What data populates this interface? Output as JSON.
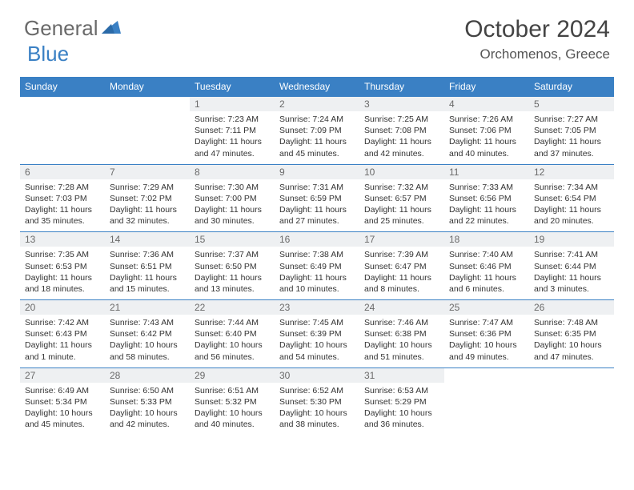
{
  "brand": {
    "part1": "General",
    "part2": "Blue"
  },
  "title": "October 2024",
  "location": "Orchomenos, Greece",
  "colors": {
    "header_bg": "#3a80c4",
    "daynum_bg": "#eef0f2",
    "divider": "#3a80c4",
    "text": "#333333",
    "logo_gray": "#6a6a6a",
    "logo_blue": "#3a80c4",
    "page_bg": "#ffffff"
  },
  "day_headers": [
    "Sunday",
    "Monday",
    "Tuesday",
    "Wednesday",
    "Thursday",
    "Friday",
    "Saturday"
  ],
  "weeks": [
    [
      null,
      null,
      {
        "n": "1",
        "sr": "7:23 AM",
        "ss": "7:11 PM",
        "dl": "11 hours and 47 minutes."
      },
      {
        "n": "2",
        "sr": "7:24 AM",
        "ss": "7:09 PM",
        "dl": "11 hours and 45 minutes."
      },
      {
        "n": "3",
        "sr": "7:25 AM",
        "ss": "7:08 PM",
        "dl": "11 hours and 42 minutes."
      },
      {
        "n": "4",
        "sr": "7:26 AM",
        "ss": "7:06 PM",
        "dl": "11 hours and 40 minutes."
      },
      {
        "n": "5",
        "sr": "7:27 AM",
        "ss": "7:05 PM",
        "dl": "11 hours and 37 minutes."
      }
    ],
    [
      {
        "n": "6",
        "sr": "7:28 AM",
        "ss": "7:03 PM",
        "dl": "11 hours and 35 minutes."
      },
      {
        "n": "7",
        "sr": "7:29 AM",
        "ss": "7:02 PM",
        "dl": "11 hours and 32 minutes."
      },
      {
        "n": "8",
        "sr": "7:30 AM",
        "ss": "7:00 PM",
        "dl": "11 hours and 30 minutes."
      },
      {
        "n": "9",
        "sr": "7:31 AM",
        "ss": "6:59 PM",
        "dl": "11 hours and 27 minutes."
      },
      {
        "n": "10",
        "sr": "7:32 AM",
        "ss": "6:57 PM",
        "dl": "11 hours and 25 minutes."
      },
      {
        "n": "11",
        "sr": "7:33 AM",
        "ss": "6:56 PM",
        "dl": "11 hours and 22 minutes."
      },
      {
        "n": "12",
        "sr": "7:34 AM",
        "ss": "6:54 PM",
        "dl": "11 hours and 20 minutes."
      }
    ],
    [
      {
        "n": "13",
        "sr": "7:35 AM",
        "ss": "6:53 PM",
        "dl": "11 hours and 18 minutes."
      },
      {
        "n": "14",
        "sr": "7:36 AM",
        "ss": "6:51 PM",
        "dl": "11 hours and 15 minutes."
      },
      {
        "n": "15",
        "sr": "7:37 AM",
        "ss": "6:50 PM",
        "dl": "11 hours and 13 minutes."
      },
      {
        "n": "16",
        "sr": "7:38 AM",
        "ss": "6:49 PM",
        "dl": "11 hours and 10 minutes."
      },
      {
        "n": "17",
        "sr": "7:39 AM",
        "ss": "6:47 PM",
        "dl": "11 hours and 8 minutes."
      },
      {
        "n": "18",
        "sr": "7:40 AM",
        "ss": "6:46 PM",
        "dl": "11 hours and 6 minutes."
      },
      {
        "n": "19",
        "sr": "7:41 AM",
        "ss": "6:44 PM",
        "dl": "11 hours and 3 minutes."
      }
    ],
    [
      {
        "n": "20",
        "sr": "7:42 AM",
        "ss": "6:43 PM",
        "dl": "11 hours and 1 minute."
      },
      {
        "n": "21",
        "sr": "7:43 AM",
        "ss": "6:42 PM",
        "dl": "10 hours and 58 minutes."
      },
      {
        "n": "22",
        "sr": "7:44 AM",
        "ss": "6:40 PM",
        "dl": "10 hours and 56 minutes."
      },
      {
        "n": "23",
        "sr": "7:45 AM",
        "ss": "6:39 PM",
        "dl": "10 hours and 54 minutes."
      },
      {
        "n": "24",
        "sr": "7:46 AM",
        "ss": "6:38 PM",
        "dl": "10 hours and 51 minutes."
      },
      {
        "n": "25",
        "sr": "7:47 AM",
        "ss": "6:36 PM",
        "dl": "10 hours and 49 minutes."
      },
      {
        "n": "26",
        "sr": "7:48 AM",
        "ss": "6:35 PM",
        "dl": "10 hours and 47 minutes."
      }
    ],
    [
      {
        "n": "27",
        "sr": "6:49 AM",
        "ss": "5:34 PM",
        "dl": "10 hours and 45 minutes."
      },
      {
        "n": "28",
        "sr": "6:50 AM",
        "ss": "5:33 PM",
        "dl": "10 hours and 42 minutes."
      },
      {
        "n": "29",
        "sr": "6:51 AM",
        "ss": "5:32 PM",
        "dl": "10 hours and 40 minutes."
      },
      {
        "n": "30",
        "sr": "6:52 AM",
        "ss": "5:30 PM",
        "dl": "10 hours and 38 minutes."
      },
      {
        "n": "31",
        "sr": "6:53 AM",
        "ss": "5:29 PM",
        "dl": "10 hours and 36 minutes."
      },
      null,
      null
    ]
  ],
  "labels": {
    "sunrise": "Sunrise:",
    "sunset": "Sunset:",
    "daylight": "Daylight:"
  }
}
